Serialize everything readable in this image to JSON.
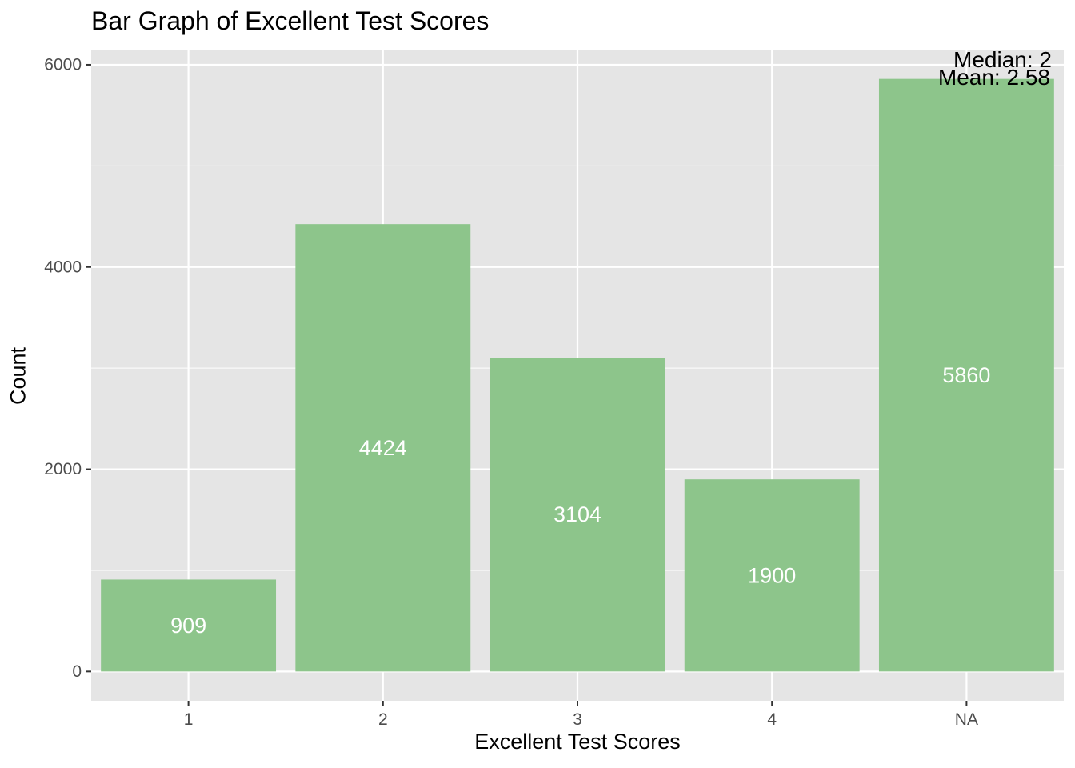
{
  "chart_data": {
    "type": "bar",
    "title": "Bar Graph of Excellent Test Scores",
    "xlabel": "Excellent Test Scores",
    "ylabel": "Count",
    "categories": [
      "1",
      "2",
      "3",
      "4",
      "NA"
    ],
    "values": [
      909,
      4424,
      3104,
      1900,
      5860
    ],
    "data_labels": [
      "909",
      "4424",
      "3104",
      "1900",
      "5860"
    ],
    "ylim": [
      -290,
      6150
    ],
    "yticks": [
      0,
      2000,
      4000,
      6000
    ],
    "ytick_labels": [
      "0",
      "2000",
      "4000",
      "6000"
    ],
    "grid": true,
    "bar_color": "#8dc58b",
    "panel_color": "#e5e5e5",
    "annotations": [
      "Median: 2",
      "Mean: 2.58"
    ]
  }
}
